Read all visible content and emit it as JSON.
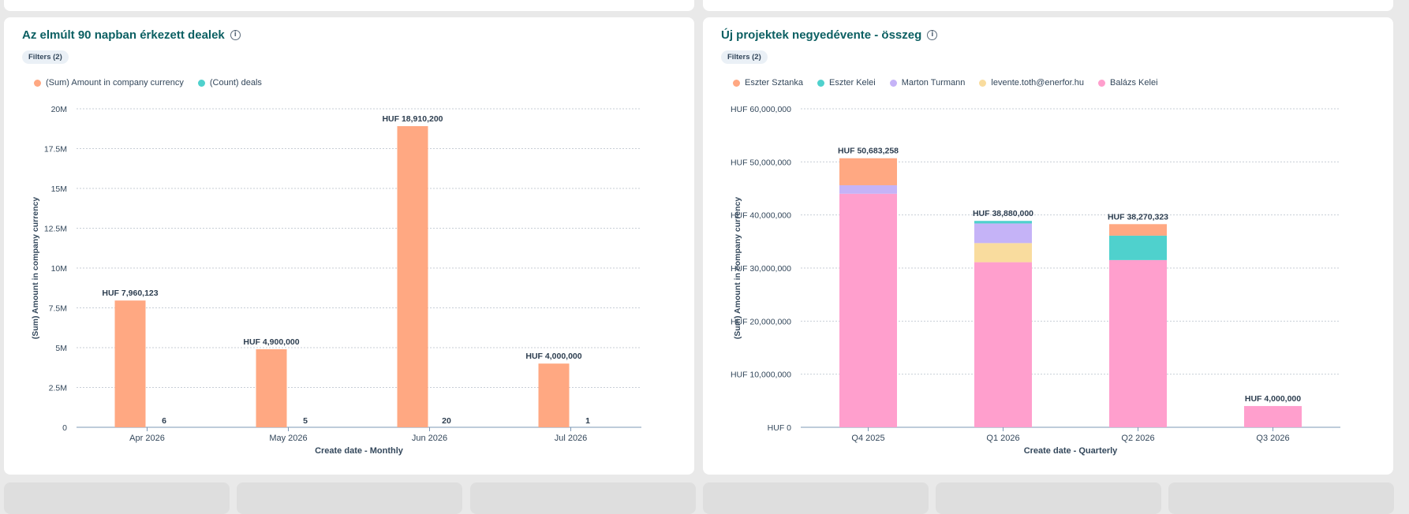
{
  "colors": {
    "title": "#0b5f62",
    "grid": "#c7ced6",
    "axis": "#7c98b6",
    "text": "#33475b"
  },
  "chart_data": [
    {
      "type": "bar",
      "title": "Az elmúlt 90 napban érkezett dealek",
      "filters_label": "Filters (2)",
      "xlabel": "Create date - Monthly",
      "ylabel": "(Sum) Amount in company currency",
      "categories": [
        "Apr 2026",
        "May 2026",
        "Jun 2026",
        "Jul 2026"
      ],
      "ylim": [
        0,
        20000000
      ],
      "yticks": [
        0,
        2500000,
        5000000,
        7500000,
        10000000,
        12500000,
        15000000,
        17500000,
        20000000
      ],
      "ytick_labels": [
        "0",
        "2.5M",
        "5M",
        "7.5M",
        "10M",
        "12.5M",
        "15M",
        "17.5M",
        "20M"
      ],
      "grid": true,
      "legend_position": "top-left",
      "series": [
        {
          "name": "(Sum) Amount in company currency",
          "color": "#ffa882",
          "values": [
            7960123,
            4900000,
            18910200,
            4000000
          ],
          "labels": [
            "HUF 7,960,123",
            "HUF 4,900,000",
            "HUF 18,910,200",
            "HUF 4,000,000"
          ]
        },
        {
          "name": "(Count) deals",
          "color": "#4fd1cd",
          "values": [
            6,
            5,
            20,
            1
          ],
          "labels": [
            "6",
            "5",
            "20",
            "1"
          ]
        }
      ]
    },
    {
      "type": "bar",
      "stacked": true,
      "title": "Új projektek negyedévente - összeg",
      "filters_label": "Filters (2)",
      "xlabel": "Create date - Quarterly",
      "ylabel": "(Sum) Amount in company currency",
      "categories": [
        "Q4 2025",
        "Q1 2026",
        "Q2 2026",
        "Q3 2026"
      ],
      "ylim": [
        0,
        60000000
      ],
      "yticks": [
        0,
        10000000,
        20000000,
        30000000,
        40000000,
        50000000,
        60000000
      ],
      "ytick_labels": [
        "HUF 0",
        "HUF 10,000,000",
        "HUF 20,000,000",
        "HUF 30,000,000",
        "HUF 40,000,000",
        "HUF 50,000,000",
        "HUF 60,000,000"
      ],
      "grid": true,
      "legend_position": "top-left",
      "totals": [
        50683258,
        38880000,
        38270323,
        4000000
      ],
      "total_labels": [
        "HUF 50,683,258",
        "HUF 38,880,000",
        "HUF 38,270,323",
        "HUF 4,000,000"
      ],
      "series": [
        {
          "name": "Balázs Kelei",
          "color": "#ff9fcd",
          "values": [
            44000000,
            31100000,
            31500000,
            4000000
          ]
        },
        {
          "name": "levente.toth@enerfor.hu",
          "color": "#f9dc9e",
          "values": [
            0,
            3600000,
            0,
            0
          ]
        },
        {
          "name": "Marton Turmann",
          "color": "#c5b3f7",
          "values": [
            1600000,
            3700000,
            0,
            0
          ]
        },
        {
          "name": "Eszter Kelei",
          "color": "#4fd1cd",
          "values": [
            0,
            480000,
            4600000,
            0
          ]
        },
        {
          "name": "Eszter Sztanka",
          "color": "#ffa882",
          "values": [
            5083258,
            0,
            2170323,
            0
          ]
        }
      ],
      "legend_order": [
        4,
        3,
        2,
        1,
        0
      ]
    }
  ]
}
